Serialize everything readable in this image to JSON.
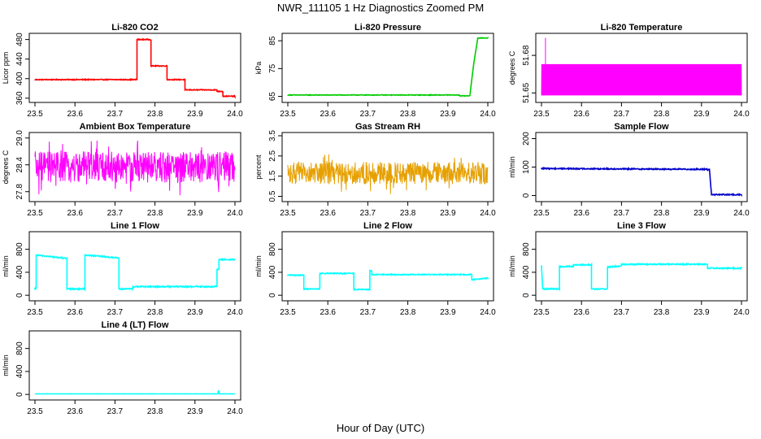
{
  "figure": {
    "title": "NWR_111105  1 Hz Diagnostics Zoomed PM",
    "xlabel": "Hour of Day (UTC)"
  },
  "chart_data": [
    {
      "type": "line",
      "title": "Li-820 CO2",
      "ylabel": "Licor ppm",
      "color": "#ff0000",
      "xlim": [
        23.5,
        24.0
      ],
      "ylim": [
        358,
        486
      ],
      "yticks": [
        360,
        400,
        440,
        480
      ],
      "yticklabels": [
        "360",
        "400",
        "440",
        "480"
      ],
      "xticks": [
        23.5,
        23.6,
        23.7,
        23.8,
        23.9,
        24.0
      ],
      "xticklabels": [
        "23.5",
        "23.6",
        "23.7",
        "23.8",
        "23.9",
        "24.0"
      ],
      "x": [
        23.5,
        23.755,
        23.755,
        23.79,
        23.79,
        23.83,
        23.83,
        23.875,
        23.875,
        23.955,
        23.955,
        23.97,
        23.97,
        24.0
      ],
      "y": [
        398,
        398,
        480,
        480,
        426,
        426,
        398,
        398,
        377,
        377,
        374,
        374,
        364,
        364
      ],
      "noise": 0.8
    },
    {
      "type": "line",
      "title": "Li-820 Pressure",
      "ylabel": "kPa",
      "color": "#00cc00",
      "xlim": [
        23.5,
        24.0
      ],
      "ylim": [
        64,
        86.5
      ],
      "yticks": [
        65,
        75,
        85
      ],
      "yticklabels": [
        "65",
        "75",
        "85"
      ],
      "xticks": [
        23.5,
        23.6,
        23.7,
        23.8,
        23.9,
        24.0
      ],
      "xticklabels": [
        "23.5",
        "23.6",
        "23.7",
        "23.8",
        "23.9",
        "24.0"
      ],
      "x": [
        23.5,
        23.93,
        23.93,
        23.955,
        23.965,
        23.975,
        24.0
      ],
      "y": [
        65.5,
        65.5,
        65.2,
        65.2,
        77,
        86,
        86
      ],
      "noise": 0.1
    },
    {
      "type": "line",
      "title": "Li-820 Temperature",
      "ylabel": "degrees C",
      "color": "#ff00ff",
      "xlim": [
        23.5,
        24.0
      ],
      "ylim": [
        51.645,
        51.695
      ],
      "yticks": [
        51.65,
        51.68
      ],
      "yticklabels": [
        "51.65",
        "51.68"
      ],
      "xticks": [
        23.5,
        23.6,
        23.7,
        23.8,
        23.9,
        24.0
      ],
      "xticklabels": [
        "23.5",
        "23.6",
        "23.7",
        "23.8",
        "23.9",
        "24.0"
      ],
      "levels": [
        51.648,
        51.673
      ],
      "spike": [
        23.51,
        51.694
      ]
    },
    {
      "type": "line",
      "title": "Ambient Box Temperature",
      "ylabel": "degrees C",
      "color": "#ff00ff",
      "xlim": [
        23.5,
        24.0
      ],
      "ylim": [
        27.65,
        29.05
      ],
      "yticks": [
        27.8,
        28.4,
        29.0
      ],
      "yticklabels": [
        "27.8",
        "28.4",
        "29.0"
      ],
      "xticks": [
        23.5,
        23.6,
        23.7,
        23.8,
        23.9,
        24.0
      ],
      "xticklabels": [
        "23.5",
        "23.6",
        "23.7",
        "23.8",
        "23.9",
        "24.0"
      ],
      "center": 28.35,
      "spread": 0.35
    },
    {
      "type": "line",
      "title": "Gas Stream RH",
      "ylabel": "percent",
      "color": "#e6a000",
      "xlim": [
        23.5,
        24.0
      ],
      "ylim": [
        0.4,
        3.5
      ],
      "yticks": [
        0.5,
        1.5,
        2.5,
        3.5
      ],
      "yticklabels": [
        "0.5",
        "1.5",
        "2.5",
        "3.5"
      ],
      "xticks": [
        23.5,
        23.6,
        23.7,
        23.8,
        23.9,
        24.0
      ],
      "xticklabels": [
        "23.5",
        "23.6",
        "23.7",
        "23.8",
        "23.9",
        "24.0"
      ],
      "center": 1.65,
      "spread": 0.55
    },
    {
      "type": "line",
      "title": "Sample Flow",
      "ylabel": "ml/min",
      "color": "#0000cc",
      "xlim": [
        23.5,
        24.0
      ],
      "ylim": [
        -10,
        210
      ],
      "yticks": [
        0,
        100,
        200
      ],
      "yticklabels": [
        "0",
        "100",
        "200"
      ],
      "xticks": [
        23.5,
        23.6,
        23.7,
        23.8,
        23.9,
        24.0
      ],
      "xticklabels": [
        "23.5",
        "23.6",
        "23.7",
        "23.8",
        "23.9",
        "24.0"
      ],
      "x": [
        23.5,
        23.915,
        23.92,
        23.925,
        24.0
      ],
      "y": [
        95,
        92,
        92,
        3,
        3
      ],
      "noise": 2
    },
    {
      "type": "line",
      "title": "Line 1 Flow",
      "ylabel": "ml/min",
      "color": "#00ffff",
      "xlim": [
        23.5,
        24.0
      ],
      "ylim": [
        -40,
        1050
      ],
      "yticks": [
        0,
        400,
        800
      ],
      "yticklabels": [
        "0",
        "400",
        "800"
      ],
      "xticks": [
        23.5,
        23.6,
        23.7,
        23.8,
        23.9,
        24.0
      ],
      "xticklabels": [
        "23.5",
        "23.6",
        "23.7",
        "23.8",
        "23.9",
        "24.0"
      ],
      "x": [
        23.5,
        23.503,
        23.503,
        23.58,
        23.58,
        23.625,
        23.625,
        23.71,
        23.71,
        23.745,
        23.745,
        23.955,
        23.955,
        23.96,
        23.96,
        24.0
      ],
      "y": [
        120,
        120,
        700,
        640,
        110,
        110,
        700,
        650,
        110,
        110,
        150,
        150,
        450,
        450,
        620,
        620
      ],
      "noise": 10
    },
    {
      "type": "line",
      "title": "Line 2 Flow",
      "ylabel": "ml/min",
      "color": "#00ffff",
      "xlim": [
        23.5,
        24.0
      ],
      "ylim": [
        -40,
        1050
      ],
      "yticks": [
        0,
        400,
        800
      ],
      "yticklabels": [
        "0",
        "400",
        "800"
      ],
      "xticks": [
        23.5,
        23.6,
        23.7,
        23.8,
        23.9,
        24.0
      ],
      "xticklabels": [
        "23.5",
        "23.6",
        "23.7",
        "23.8",
        "23.9",
        "24.0"
      ],
      "x": [
        23.5,
        23.54,
        23.54,
        23.58,
        23.58,
        23.665,
        23.665,
        23.705,
        23.705,
        23.71,
        23.71,
        23.96,
        23.96,
        24.0
      ],
      "y": [
        350,
        350,
        110,
        110,
        380,
        380,
        100,
        100,
        430,
        430,
        360,
        360,
        270,
        300
      ],
      "noise": 8
    },
    {
      "type": "line",
      "title": "Line 3 Flow",
      "ylabel": "ml/min",
      "color": "#00ffff",
      "xlim": [
        23.5,
        24.0
      ],
      "ylim": [
        -40,
        1050
      ],
      "yticks": [
        0,
        400,
        800
      ],
      "yticklabels": [
        "0",
        "400",
        "800"
      ],
      "xticks": [
        23.5,
        23.6,
        23.7,
        23.8,
        23.9,
        24.0
      ],
      "xticklabels": [
        "23.5",
        "23.6",
        "23.7",
        "23.8",
        "23.9",
        "24.0"
      ],
      "x": [
        23.5,
        23.503,
        23.503,
        23.545,
        23.545,
        23.58,
        23.58,
        23.625,
        23.625,
        23.665,
        23.665,
        23.7,
        23.7,
        23.915,
        23.915,
        24.0
      ],
      "y": [
        520,
        110,
        110,
        110,
        500,
        500,
        530,
        530,
        110,
        110,
        490,
        510,
        540,
        540,
        470,
        470
      ],
      "noise": 10
    },
    {
      "type": "line",
      "title": "Line 4 (LT) Flow",
      "ylabel": "ml/min",
      "color": "#00ffff",
      "xlim": [
        23.5,
        24.0
      ],
      "ylim": [
        -40,
        1050
      ],
      "yticks": [
        0,
        400,
        800
      ],
      "yticklabels": [
        "0",
        "400",
        "800"
      ],
      "xticks": [
        23.5,
        23.6,
        23.7,
        23.8,
        23.9,
        24.0
      ],
      "xticklabels": [
        "23.5",
        "23.6",
        "23.7",
        "23.8",
        "23.9",
        "24.0"
      ],
      "x": [
        23.5,
        23.957,
        23.959,
        23.961,
        24.0
      ],
      "y": [
        10,
        10,
        70,
        10,
        10
      ],
      "noise": 1
    }
  ]
}
